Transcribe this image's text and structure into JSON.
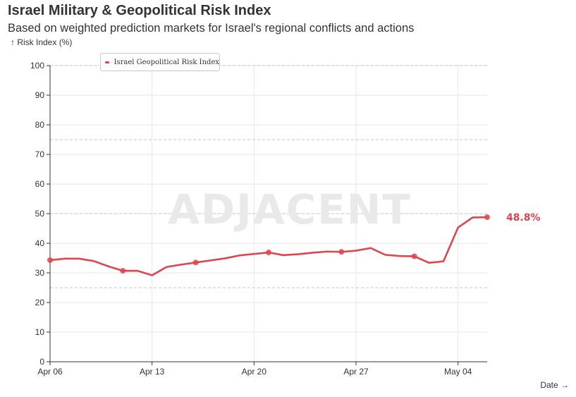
{
  "title": "Israel Military & Geopolitical Risk Index",
  "subtitle": "Based on weighted prediction markets for Israel's regional conflicts and actions",
  "watermark": "ADJACENT",
  "colors": {
    "series": "#e0434e",
    "grid": "#e6e6e6",
    "axis": "#333333"
  },
  "chart_data": {
    "type": "line",
    "title": "Israel Military & Geopolitical Risk Index",
    "subtitle": "Based on weighted prediction markets for Israel's regional conflicts and actions",
    "xlabel": "Date →",
    "ylabel": "↑ Risk Index (%)",
    "ylim": [
      0,
      100
    ],
    "y_ticks": [
      0,
      10,
      20,
      30,
      40,
      50,
      60,
      70,
      80,
      90,
      100
    ],
    "y_tick_labels": [
      "0",
      "10",
      "20",
      "30",
      "40",
      "50",
      "60",
      "70",
      "80",
      "90",
      "100"
    ],
    "x_range": [
      "2025-04-06",
      "2025-05-06"
    ],
    "x_ticks": [
      "2025-04-06",
      "2025-04-13",
      "2025-04-20",
      "2025-04-27",
      "2025-05-04"
    ],
    "x_tick_labels": [
      "Apr 06",
      "Apr 13",
      "Apr 20",
      "Apr 27",
      "May 04"
    ],
    "reference_lines": [
      25,
      50,
      75,
      100
    ],
    "grid": true,
    "legend_position": "top-left",
    "last_value_label": "48.8%",
    "series": [
      {
        "name": "Israel Geopolitical Risk Index",
        "color": "#e0434e",
        "x": [
          "2025-04-06",
          "2025-04-07",
          "2025-04-08",
          "2025-04-09",
          "2025-04-10",
          "2025-04-11",
          "2025-04-12",
          "2025-04-13",
          "2025-04-14",
          "2025-04-15",
          "2025-04-16",
          "2025-04-17",
          "2025-04-18",
          "2025-04-19",
          "2025-04-20",
          "2025-04-21",
          "2025-04-22",
          "2025-04-23",
          "2025-04-24",
          "2025-04-25",
          "2025-04-26",
          "2025-04-27",
          "2025-04-28",
          "2025-04-29",
          "2025-04-30",
          "2025-05-01",
          "2025-05-02",
          "2025-05-03",
          "2025-05-04",
          "2025-05-05",
          "2025-05-06"
        ],
        "y": [
          34.3,
          34.8,
          34.8,
          34.0,
          32.2,
          30.7,
          30.7,
          29.2,
          32.0,
          32.8,
          33.5,
          34.2,
          34.9,
          35.9,
          36.4,
          36.9,
          36.0,
          36.3,
          36.8,
          37.2,
          37.1,
          37.5,
          38.4,
          36.1,
          35.7,
          35.6,
          33.4,
          33.9,
          45.3,
          48.7,
          48.8
        ],
        "marker_x": [
          "2025-04-06",
          "2025-04-11",
          "2025-04-16",
          "2025-04-21",
          "2025-04-26",
          "2025-05-01",
          "2025-05-06"
        ]
      }
    ]
  }
}
